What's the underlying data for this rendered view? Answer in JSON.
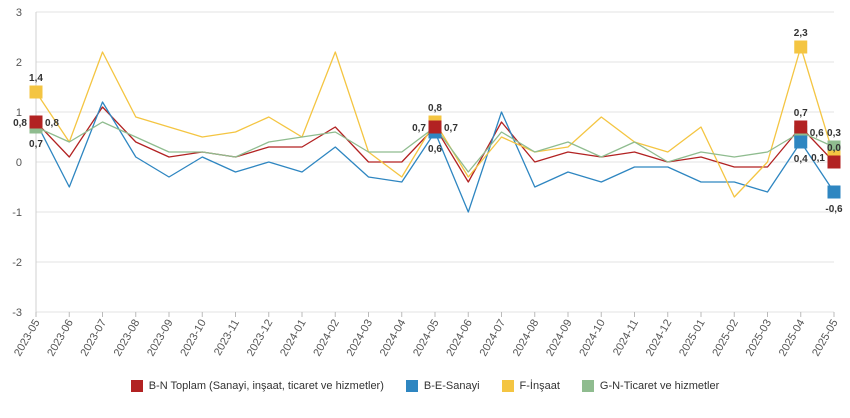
{
  "chart_data": {
    "type": "line",
    "x": [
      "2023-05",
      "2023-06",
      "2023-07",
      "2023-08",
      "2023-09",
      "2023-10",
      "2023-11",
      "2023-12",
      "2024-01",
      "2024-02",
      "2024-03",
      "2024-04",
      "2024-05",
      "2024-06",
      "2024-07",
      "2024-08",
      "2024-09",
      "2024-10",
      "2024-11",
      "2024-12",
      "2025-01",
      "2025-02",
      "2025-03",
      "2025-04",
      "2025-05"
    ],
    "ylim": [
      -3,
      3
    ],
    "yticks": [
      -3,
      -2,
      -1,
      0,
      1,
      2,
      3
    ],
    "grid": "horizontal",
    "legend_position": "bottom",
    "series": [
      {
        "name": "B-N Toplam (Sanayi, inşaat, ticaret ve hizmetler)",
        "color": "#b22222",
        "values": [
          0.8,
          0.1,
          1.1,
          0.4,
          0.1,
          0.2,
          0.1,
          0.3,
          0.3,
          0.7,
          0.0,
          0.0,
          0.7,
          -0.4,
          0.8,
          0.0,
          0.2,
          0.1,
          0.2,
          0.0,
          0.1,
          -0.1,
          -0.1,
          0.7,
          0.0
        ]
      },
      {
        "name": "B-E-Sanayi",
        "color": "#2e86c1",
        "values": [
          0.8,
          -0.5,
          1.2,
          0.1,
          -0.3,
          0.1,
          -0.2,
          0.0,
          -0.2,
          0.3,
          -0.3,
          -0.4,
          0.6,
          -1.0,
          1.0,
          -0.5,
          -0.2,
          -0.4,
          -0.1,
          -0.1,
          -0.4,
          -0.4,
          -0.6,
          0.4,
          -0.6
        ]
      },
      {
        "name": "F-İnşaat",
        "color": "#f4c542",
        "values": [
          1.4,
          0.4,
          2.2,
          0.9,
          0.7,
          0.5,
          0.6,
          0.9,
          0.5,
          2.2,
          0.2,
          -0.3,
          0.8,
          -0.3,
          0.5,
          0.2,
          0.3,
          0.9,
          0.4,
          0.2,
          0.7,
          -0.7,
          0.0,
          2.3,
          0.1
        ]
      },
      {
        "name": "G-N-Ticaret ve hizmetler",
        "color": "#8fbc8f",
        "values": [
          0.7,
          0.4,
          0.8,
          0.5,
          0.2,
          0.2,
          0.1,
          0.4,
          0.5,
          0.6,
          0.2,
          0.2,
          0.7,
          -0.2,
          0.6,
          0.2,
          0.4,
          0.1,
          0.4,
          0.0,
          0.2,
          0.1,
          0.2,
          0.6,
          0.3
        ]
      }
    ],
    "data_labels": [
      {
        "series": 2,
        "index": 0,
        "text": "1,4",
        "pos": "above"
      },
      {
        "series": 0,
        "index": 0,
        "text": "0,8",
        "pos": "left"
      },
      {
        "series": 1,
        "index": 0,
        "text": "0,8",
        "pos": "right"
      },
      {
        "series": 3,
        "index": 0,
        "text": "0,7",
        "pos": "below"
      },
      {
        "series": 2,
        "index": 12,
        "text": "0,8",
        "pos": "above"
      },
      {
        "series": 0,
        "index": 12,
        "text": "0,7",
        "pos": "left"
      },
      {
        "series": 3,
        "index": 12,
        "text": "0,7",
        "pos": "right"
      },
      {
        "series": 1,
        "index": 12,
        "text": "0,6",
        "pos": "below"
      },
      {
        "series": 2,
        "index": 23,
        "text": "2,3",
        "pos": "above"
      },
      {
        "series": 0,
        "index": 23,
        "text": "0,7",
        "pos": "above"
      },
      {
        "series": 3,
        "index": 23,
        "text": "0,6",
        "pos": "right"
      },
      {
        "series": 1,
        "index": 23,
        "text": "0,4",
        "pos": "below"
      },
      {
        "series": 3,
        "index": 24,
        "text": "0,3",
        "pos": "above"
      },
      {
        "series": 2,
        "index": 24,
        "text": "0,1",
        "pos": "left"
      },
      {
        "series": 0,
        "index": 24,
        "text": "0,0",
        "pos": "above"
      },
      {
        "series": 1,
        "index": 24,
        "text": "-0,6",
        "pos": "below"
      }
    ],
    "marker_indices": [
      0,
      12,
      23,
      24
    ]
  }
}
